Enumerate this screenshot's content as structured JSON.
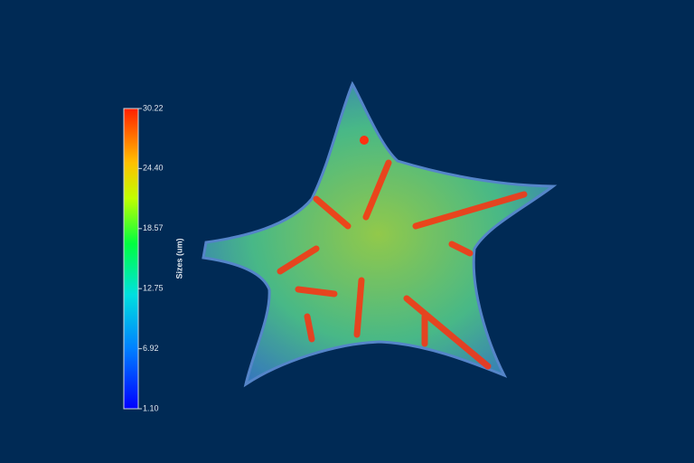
{
  "colorbar": {
    "label": "Sizes (um)",
    "lim": [
      1.1,
      30.22
    ],
    "ticks": [
      {
        "value": 1.1,
        "label": "1.10"
      },
      6.92,
      12.75,
      18.57,
      {
        "value": 24.4,
        "label": "24.40"
      },
      30.22
    ]
  }
}
